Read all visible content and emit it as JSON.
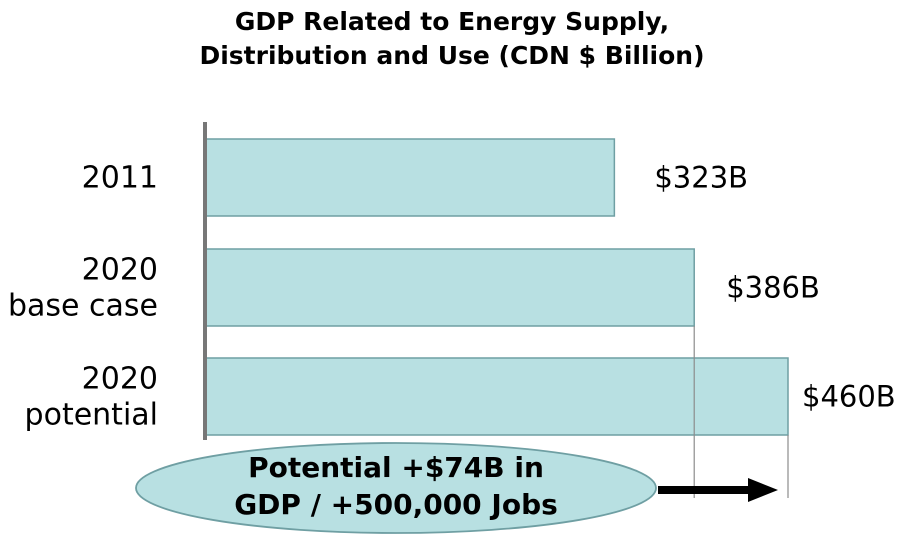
{
  "chart_data": {
    "type": "bar",
    "orientation": "horizontal",
    "title_lines": [
      "GDP Related to Energy Supply,",
      "Distribution and Use (CDN $ Billion)"
    ],
    "categories": [
      [
        "2011"
      ],
      [
        "2020",
        "base case"
      ],
      [
        "2020",
        "potential"
      ]
    ],
    "values": [
      323,
      386,
      460
    ],
    "data_labels": [
      "$323B",
      "$386B",
      "$460B"
    ],
    "xlim": [
      0,
      460
    ],
    "bar_color": "#b8e0e2",
    "bar_edge_color": "#6f9fa3",
    "axis_color": "#777777",
    "grid": false,
    "legend": "none",
    "callout": {
      "lines": [
        "Potential +$74B in",
        "GDP / +500,000 Jobs"
      ],
      "fill": "#b8e0e2",
      "edge": "#6f9fa3"
    }
  }
}
